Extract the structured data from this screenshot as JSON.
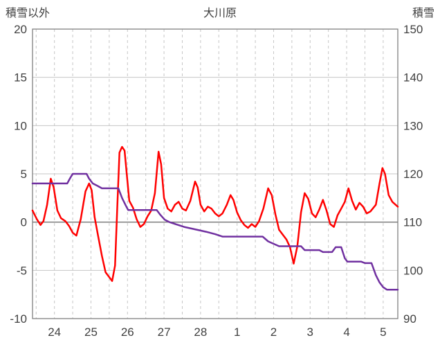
{
  "chart_data": {
    "type": "line",
    "title": "大川原",
    "left_axis_label": "積雪以外",
    "right_axis_label": "積雪",
    "left_ylim": [
      -10,
      20
    ],
    "right_ylim": [
      90,
      150
    ],
    "left_ticks": [
      20,
      15,
      10,
      5,
      0,
      -5,
      -10
    ],
    "right_ticks": [
      150,
      140,
      130,
      120,
      110,
      100,
      90
    ],
    "x_range": [
      0,
      10
    ],
    "x_labels": [
      "24",
      "25",
      "26",
      "27",
      "28",
      "1",
      "2",
      "3",
      "4",
      "5"
    ],
    "x_label_positions": [
      0.6,
      1.6,
      2.6,
      3.6,
      4.6,
      5.6,
      6.6,
      7.6,
      8.6,
      9.6
    ],
    "grid": {
      "vgrid_start": 0.1,
      "vgrid_step": 0.5,
      "horizontal": "solid",
      "vertical": "dashed"
    },
    "legend": "none",
    "colors": {
      "red_series": "#ff0000",
      "purple_series": "#7030a0",
      "grid": "#c6c6c6",
      "zero_line": "#707070",
      "frame": "#808080",
      "text": "#404040"
    },
    "series": [
      {
        "name": "積雪以外",
        "axis": "left",
        "color": "#ff0000",
        "points": [
          [
            0,
            1.2
          ],
          [
            0.12,
            0.3
          ],
          [
            0.22,
            -0.3
          ],
          [
            0.3,
            0.1
          ],
          [
            0.4,
            1.8
          ],
          [
            0.5,
            4.5
          ],
          [
            0.58,
            3.6
          ],
          [
            0.68,
            1.2
          ],
          [
            0.78,
            0.4
          ],
          [
            0.9,
            0.1
          ],
          [
            1.0,
            -0.4
          ],
          [
            1.1,
            -1.1
          ],
          [
            1.2,
            -1.4
          ],
          [
            1.32,
            0.3
          ],
          [
            1.45,
            3.2
          ],
          [
            1.55,
            4.0
          ],
          [
            1.62,
            3.3
          ],
          [
            1.7,
            0.5
          ],
          [
            1.8,
            -1.5
          ],
          [
            1.9,
            -3.5
          ],
          [
            2.0,
            -5.2
          ],
          [
            2.1,
            -5.7
          ],
          [
            2.18,
            -6.1
          ],
          [
            2.26,
            -4.5
          ],
          [
            2.32,
            1.5
          ],
          [
            2.38,
            7.2
          ],
          [
            2.45,
            7.8
          ],
          [
            2.52,
            7.4
          ],
          [
            2.58,
            5.0
          ],
          [
            2.65,
            2.2
          ],
          [
            2.75,
            1.5
          ],
          [
            2.85,
            0.3
          ],
          [
            2.95,
            -0.5
          ],
          [
            3.05,
            -0.2
          ],
          [
            3.15,
            0.6
          ],
          [
            3.25,
            1.2
          ],
          [
            3.35,
            3.0
          ],
          [
            3.45,
            7.3
          ],
          [
            3.52,
            6.0
          ],
          [
            3.6,
            2.5
          ],
          [
            3.7,
            1.4
          ],
          [
            3.8,
            1.1
          ],
          [
            3.9,
            1.8
          ],
          [
            4.0,
            2.1
          ],
          [
            4.1,
            1.4
          ],
          [
            4.2,
            1.2
          ],
          [
            4.32,
            2.2
          ],
          [
            4.45,
            4.2
          ],
          [
            4.52,
            3.6
          ],
          [
            4.6,
            1.8
          ],
          [
            4.7,
            1.1
          ],
          [
            4.8,
            1.6
          ],
          [
            4.9,
            1.4
          ],
          [
            5.0,
            0.9
          ],
          [
            5.1,
            0.6
          ],
          [
            5.2,
            0.9
          ],
          [
            5.32,
            1.8
          ],
          [
            5.42,
            2.8
          ],
          [
            5.5,
            2.3
          ],
          [
            5.6,
            1.0
          ],
          [
            5.7,
            0.2
          ],
          [
            5.8,
            -0.3
          ],
          [
            5.9,
            -0.6
          ],
          [
            6.0,
            -0.2
          ],
          [
            6.1,
            -0.5
          ],
          [
            6.2,
            0.1
          ],
          [
            6.32,
            1.4
          ],
          [
            6.45,
            3.5
          ],
          [
            6.55,
            2.8
          ],
          [
            6.65,
            0.8
          ],
          [
            6.75,
            -0.8
          ],
          [
            6.85,
            -1.3
          ],
          [
            6.95,
            -1.8
          ],
          [
            7.05,
            -2.6
          ],
          [
            7.15,
            -4.3
          ],
          [
            7.25,
            -2.5
          ],
          [
            7.35,
            1.0
          ],
          [
            7.45,
            3.0
          ],
          [
            7.55,
            2.4
          ],
          [
            7.65,
            0.9
          ],
          [
            7.75,
            0.5
          ],
          [
            7.85,
            1.3
          ],
          [
            7.95,
            2.3
          ],
          [
            8.05,
            1.2
          ],
          [
            8.15,
            -0.2
          ],
          [
            8.25,
            -0.5
          ],
          [
            8.35,
            0.7
          ],
          [
            8.45,
            1.4
          ],
          [
            8.55,
            2.1
          ],
          [
            8.65,
            3.5
          ],
          [
            8.75,
            2.2
          ],
          [
            8.85,
            1.3
          ],
          [
            8.95,
            2.0
          ],
          [
            9.05,
            1.6
          ],
          [
            9.15,
            0.9
          ],
          [
            9.25,
            1.1
          ],
          [
            9.4,
            1.8
          ],
          [
            9.5,
            4.0
          ],
          [
            9.58,
            5.6
          ],
          [
            9.65,
            5.0
          ],
          [
            9.75,
            2.8
          ],
          [
            9.85,
            2.1
          ],
          [
            10,
            1.6
          ]
        ]
      },
      {
        "name": "積雪",
        "axis": "right",
        "color": "#7030a0",
        "points": [
          [
            0,
            118
          ],
          [
            0.95,
            118
          ],
          [
            1.02,
            119
          ],
          [
            1.1,
            120
          ],
          [
            1.48,
            120
          ],
          [
            1.55,
            119
          ],
          [
            1.65,
            118
          ],
          [
            1.78,
            117.5
          ],
          [
            1.9,
            117
          ],
          [
            2.35,
            117
          ],
          [
            2.45,
            115
          ],
          [
            2.55,
            113.5
          ],
          [
            2.62,
            112.5
          ],
          [
            3.4,
            112.5
          ],
          [
            3.5,
            111.5
          ],
          [
            3.62,
            110.5
          ],
          [
            3.75,
            110
          ],
          [
            3.95,
            109.5
          ],
          [
            4.15,
            109
          ],
          [
            4.45,
            108.5
          ],
          [
            4.75,
            108
          ],
          [
            5.0,
            107.5
          ],
          [
            5.2,
            107
          ],
          [
            6.3,
            107
          ],
          [
            6.45,
            106
          ],
          [
            6.6,
            105.5
          ],
          [
            6.75,
            105
          ],
          [
            7.35,
            105
          ],
          [
            7.45,
            104.2
          ],
          [
            7.85,
            104.2
          ],
          [
            7.95,
            103.8
          ],
          [
            8.2,
            103.8
          ],
          [
            8.3,
            104.8
          ],
          [
            8.45,
            104.8
          ],
          [
            8.55,
            102.5
          ],
          [
            8.62,
            101.8
          ],
          [
            9.0,
            101.8
          ],
          [
            9.1,
            101.5
          ],
          [
            9.28,
            101.5
          ],
          [
            9.4,
            99
          ],
          [
            9.5,
            97.5
          ],
          [
            9.6,
            96.5
          ],
          [
            9.7,
            96
          ],
          [
            10,
            96
          ]
        ]
      }
    ]
  }
}
